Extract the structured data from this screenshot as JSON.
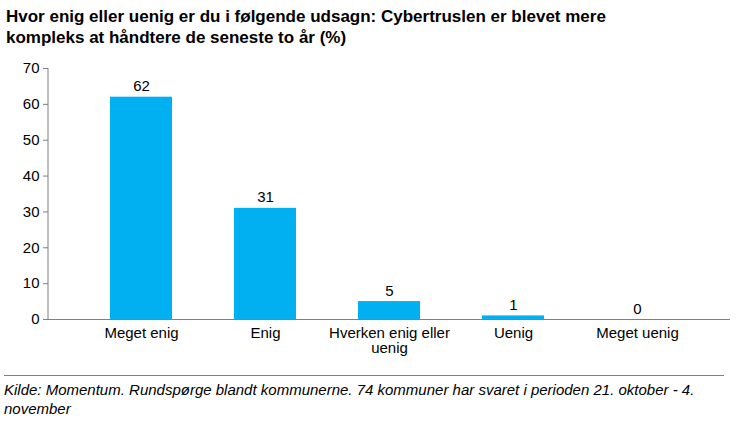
{
  "chart_data": {
    "type": "bar",
    "title": "Hvor enig eller uenig er du i følgende udsagn: Cybertruslen er blevet mere kompleks at håndtere de seneste to år (%)",
    "caption": "Kilde: Momentum. Rundspørge blandt kommunerne. 74 kommuner har svaret i perioden 21. oktober - 4. november",
    "categories": [
      "Meget enig",
      "Enig",
      "Hverken enig eller uenig",
      "Uenig",
      "Meget uenig"
    ],
    "values": [
      62,
      31,
      5,
      1,
      0
    ],
    "color": "#00b0f0",
    "ylim": [
      0,
      70
    ],
    "yticks": [
      0,
      10,
      20,
      30,
      40,
      50,
      60,
      70
    ],
    "grid": false,
    "data_labels": true
  }
}
